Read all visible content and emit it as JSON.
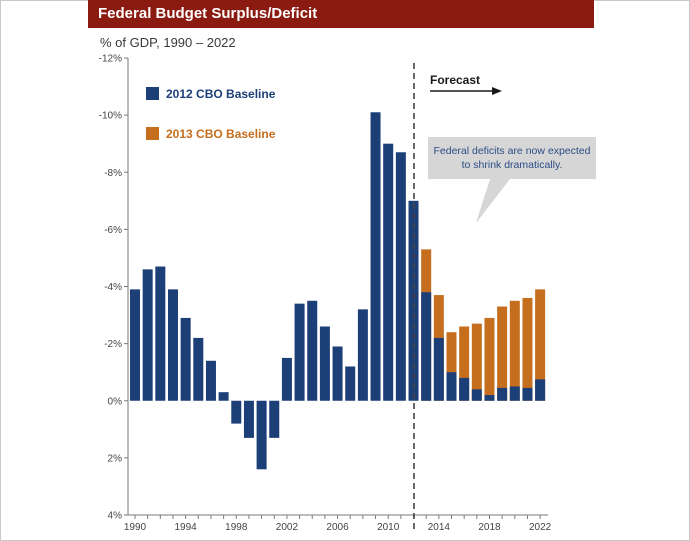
{
  "header": {
    "title": "Federal Budget Surplus/Deficit",
    "subtitle": "% of GDP, 1990 – 2022"
  },
  "chart_data": {
    "type": "bar",
    "title": "Federal Budget Surplus/Deficit",
    "subtitle": "% of GDP, 1990 – 2022",
    "xlabel": "",
    "ylabel": "% of GDP",
    "ylim": [
      4,
      -12
    ],
    "y_axis_inverted": true,
    "y_ticks": [
      {
        "value": -12,
        "label": "-12%"
      },
      {
        "value": -10,
        "label": "-10%"
      },
      {
        "value": -8,
        "label": "-8%"
      },
      {
        "value": -6,
        "label": "-6%"
      },
      {
        "value": -4,
        "label": "-4%"
      },
      {
        "value": -2,
        "label": "-2%"
      },
      {
        "value": 0,
        "label": "0%"
      },
      {
        "value": 2,
        "label": "2%"
      },
      {
        "value": 4,
        "label": "4%"
      }
    ],
    "x_ticks": [
      "1990",
      "1994",
      "1998",
      "2002",
      "2006",
      "2010",
      "2014",
      "2018",
      "2022"
    ],
    "categories": [
      1990,
      1991,
      1992,
      1993,
      1994,
      1995,
      1996,
      1997,
      1998,
      1999,
      2000,
      2001,
      2002,
      2003,
      2004,
      2005,
      2006,
      2007,
      2008,
      2009,
      2010,
      2011,
      2012,
      2013,
      2014,
      2015,
      2016,
      2017,
      2018,
      2019,
      2020,
      2021,
      2022
    ],
    "series": [
      {
        "name": "2012 CBO Baseline",
        "color": "#1c3f78",
        "values": [
          -3.9,
          -4.6,
          -4.7,
          -3.9,
          -2.9,
          -2.2,
          -1.4,
          -0.3,
          0.8,
          1.3,
          2.4,
          1.3,
          -1.5,
          -3.4,
          -3.5,
          -2.6,
          -1.9,
          -1.2,
          -3.2,
          -10.1,
          -9.0,
          -8.7,
          -7.0,
          -3.8,
          -2.2,
          -1.0,
          -0.8,
          -0.4,
          -0.2,
          -0.45,
          -0.5,
          -0.45,
          -0.75
        ]
      },
      {
        "name": "2013 CBO Baseline",
        "color": "#c46e1e",
        "values": [
          null,
          null,
          null,
          null,
          null,
          null,
          null,
          null,
          null,
          null,
          null,
          null,
          null,
          null,
          null,
          null,
          null,
          null,
          null,
          null,
          null,
          null,
          null,
          -5.3,
          -3.7,
          -2.4,
          -2.6,
          -2.7,
          -2.9,
          -3.3,
          -3.5,
          -3.6,
          -3.9
        ]
      }
    ],
    "legend": {
      "position": "top-left",
      "entries": [
        "2012 CBO Baseline",
        "2013 CBO Baseline"
      ]
    },
    "forecast": {
      "start_year": 2013,
      "label": "Forecast"
    },
    "annotation": {
      "text_line1": "Federal deficits are now expected",
      "text_line2": "to shrink dramatically.",
      "color": "#2b4d86"
    },
    "grid": false
  }
}
